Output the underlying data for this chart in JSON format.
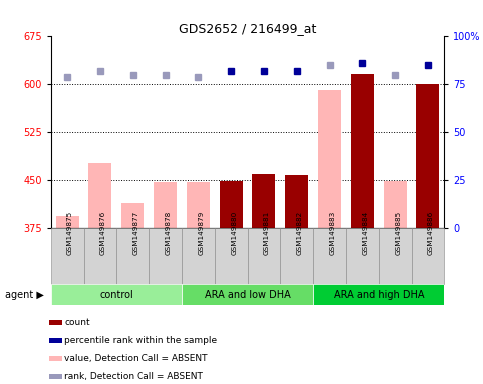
{
  "title": "GDS2652 / 216499_at",
  "samples": [
    "GSM149875",
    "GSM149876",
    "GSM149877",
    "GSM149878",
    "GSM149879",
    "GSM149880",
    "GSM149881",
    "GSM149882",
    "GSM149883",
    "GSM149884",
    "GSM149885",
    "GSM149886"
  ],
  "values": [
    395,
    478,
    415,
    447,
    448,
    449,
    460,
    458,
    591,
    617,
    449,
    601
  ],
  "absent_mask": [
    true,
    true,
    true,
    true,
    true,
    false,
    false,
    false,
    true,
    false,
    true,
    false
  ],
  "percentile_ranks": [
    79,
    82,
    80,
    80,
    79,
    82,
    82,
    82,
    85,
    86,
    80,
    85
  ],
  "absent_rank_mask": [
    true,
    true,
    true,
    true,
    true,
    false,
    false,
    false,
    true,
    false,
    true,
    false
  ],
  "ylim_left": [
    375,
    675
  ],
  "yticks_left": [
    375,
    450,
    525,
    600,
    675
  ],
  "ytick_labels_left": [
    "375",
    "450",
    "525",
    "600",
    "675"
  ],
  "ylim_right": [
    0,
    100
  ],
  "yticks_right": [
    0,
    25,
    50,
    75,
    100
  ],
  "ytick_labels_right": [
    "0",
    "25",
    "50",
    "75",
    "100%"
  ],
  "bar_color_present": "#990000",
  "bar_color_absent": "#FFB6B6",
  "dot_color_present": "#000099",
  "dot_color_absent": "#9999BB",
  "group_defs": [
    {
      "name": "control",
      "indices": [
        0,
        1,
        2,
        3
      ],
      "color": "#99EE99"
    },
    {
      "name": "ARA and low DHA",
      "indices": [
        4,
        5,
        6,
        7
      ],
      "color": "#66DD66"
    },
    {
      "name": "ARA and high DHA",
      "indices": [
        8,
        9,
        10,
        11
      ],
      "color": "#00CC33"
    }
  ],
  "legend_items": [
    {
      "label": "count",
      "color": "#990000"
    },
    {
      "label": "percentile rank within the sample",
      "color": "#000099"
    },
    {
      "label": "value, Detection Call = ABSENT",
      "color": "#FFB6B6"
    },
    {
      "label": "rank, Detection Call = ABSENT",
      "color": "#9999BB"
    }
  ]
}
